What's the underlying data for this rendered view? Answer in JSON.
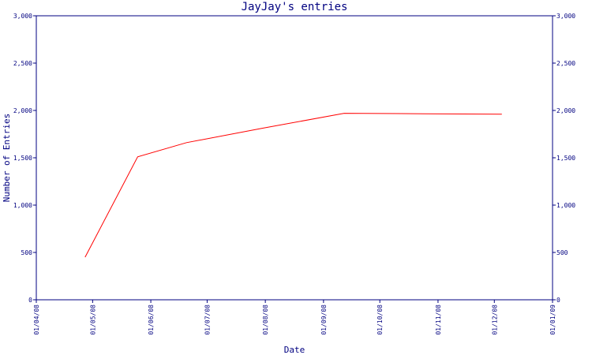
{
  "colors": {
    "axis": "#000080",
    "text": "#000080",
    "line": "#ff0000",
    "background": "#ffffff"
  },
  "chart_data": {
    "type": "line",
    "title": "JayJay's entries",
    "xlabel": "Date",
    "ylabel": "Number of Entries",
    "x_ticks": [
      "01/04/08",
      "01/05/08",
      "01/06/08",
      "01/07/08",
      "01/08/08",
      "01/09/08",
      "01/10/08",
      "01/11/08",
      "01/12/08",
      "01/01/09"
    ],
    "y_ticks": [
      "0",
      "500",
      "1,000",
      "1,500",
      "2,000",
      "2,500",
      "3,000"
    ],
    "y_tick_values": [
      0,
      500,
      1000,
      1500,
      2000,
      2500,
      3000
    ],
    "ylim": [
      0,
      3000
    ],
    "xlim": [
      "2008-04-01",
      "2009-01-01"
    ],
    "grid": false,
    "series": [
      {
        "x": [
          "2008-04-27",
          "2008-05-25",
          "2008-06-20",
          "2008-07-30",
          "2008-09-12",
          "2008-10-25",
          "2008-12-05"
        ],
        "y": [
          450,
          1510,
          1660,
          1810,
          1970,
          1965,
          1960
        ]
      }
    ]
  }
}
